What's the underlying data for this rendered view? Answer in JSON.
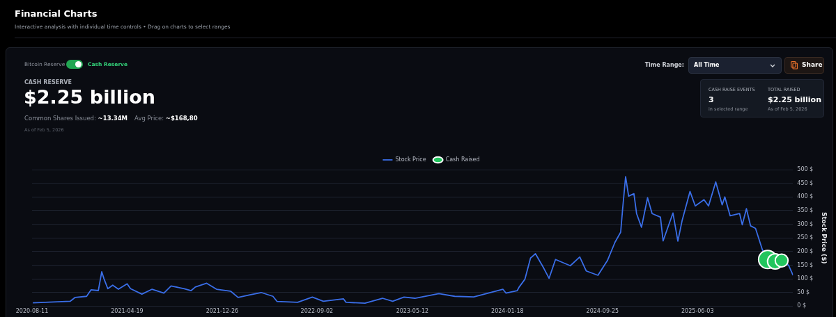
{
  "chart_data": {
    "type": "line",
    "title": "Financial Charts",
    "subtitle": "Interactive analysis with individual time controls • Drag on charts to select ranges",
    "ylabel": "Stock Price ($)",
    "annotations": [
      "Bitcoin Reserve",
      "Cash Reserve",
      "CASH RESERVE",
      "$2.25 billion",
      "Common Shares Issued:",
      "~13.34M",
      "Avg Price:",
      "~$168,80",
      "As of Feb 5, 2026",
      "Time Range:",
      "All Time",
      "Share",
      "CASH RAISE EVENTS",
      "3",
      "in selected range",
      "TOTAL RAISED",
      "$2.25 billion",
      "As of Feb 5, 2026"
    ],
    "series": [
      {
        "name": "Stock Price",
        "color": "#3a6ee8",
        "marker": "none",
        "x": [
          "2020-08-13",
          "2020-11-20",
          "2020-12-03",
          "2021-01-02",
          "2021-01-14",
          "2021-02-02",
          "2021-02-11",
          "2021-02-17",
          "2021-02-27",
          "2021-03-12",
          "2021-03-27",
          "2021-04-19",
          "2021-04-28",
          "2021-05-28",
          "2021-06-24",
          "2021-07-25",
          "2021-08-13",
          "2021-09-17",
          "2021-10-05",
          "2021-10-16",
          "2021-11-15",
          "2021-12-11",
          "2022-01-17",
          "2022-02-06",
          "2022-03-07",
          "2022-04-08",
          "2022-05-09",
          "2022-05-20",
          "2022-07-13",
          "2022-08-21",
          "2022-09-19",
          "2022-11-11",
          "2022-11-18",
          "2023-01-07",
          "2023-02-22",
          "2023-03-21",
          "2023-04-20",
          "2023-05-19",
          "2023-07-21",
          "2023-09-01",
          "2023-10-21",
          "2024-01-06",
          "2024-01-14",
          "2024-02-13",
          "2024-02-18",
          "2024-03-04",
          "2024-03-19",
          "2024-04-01",
          "2024-04-23",
          "2024-05-07",
          "2024-05-24",
          "2024-07-02",
          "2024-07-27",
          "2024-08-13",
          "2024-09-13",
          "2024-10-08",
          "2024-10-28",
          "2024-11-12",
          "2024-11-17",
          "2024-11-25",
          "2024-12-03",
          "2024-12-17",
          "2024-12-24",
          "2025-01-06",
          "2025-01-22",
          "2025-02-03",
          "2025-02-25",
          "2025-03-04",
          "2025-03-30",
          "2025-04-12",
          "2025-04-23",
          "2025-05-14",
          "2025-05-28",
          "2025-06-20",
          "2025-07-02",
          "2025-07-21",
          "2025-08-07",
          "2025-08-14",
          "2025-08-28",
          "2025-09-22",
          "2025-09-29",
          "2025-10-10",
          "2025-10-21",
          "2025-11-03",
          "2025-11-21",
          "2025-12-05",
          "2026-01-16",
          "2026-01-30",
          "2026-02-10"
        ],
        "values": [
          12,
          18,
          32,
          36,
          60,
          57,
          126,
          100,
          64,
          77,
          62,
          82,
          64,
          44,
          62,
          48,
          74,
          64,
          57,
          70,
          84,
          62,
          55,
          32,
          41,
          50,
          36,
          17,
          14,
          33,
          18,
          27,
          14,
          11,
          29,
          18,
          33,
          29,
          46,
          36,
          34,
          62,
          48,
          57,
          70,
          98,
          176,
          192,
          139,
          102,
          171,
          148,
          180,
          129,
          113,
          167,
          234,
          271,
          353,
          474,
          403,
          412,
          339,
          289,
          397,
          339,
          326,
          239,
          341,
          238,
          312,
          420,
          367,
          390,
          367,
          455,
          371,
          400,
          331,
          339,
          298,
          357,
          294,
          285,
          207,
          175,
          167,
          148,
          113
        ]
      },
      {
        "name": "Cash Raised",
        "type": "bubble",
        "color": "#22c55e",
        "marker": "circle",
        "x": [
          "2025-12-05",
          "2025-12-25",
          "2026-01-11"
        ],
        "values": [
          171,
          164,
          167
        ],
        "sizes": [
          1,
          0.72,
          0.5
        ]
      }
    ],
    "xlim": [
      "2020-08-11",
      "2026-02-10"
    ],
    "xticks": [
      "2020-08-11",
      "2021-04-19",
      "2021-12-26",
      "2022-09-02",
      "2023-05-12",
      "2024-01-18",
      "2024-09-25",
      "2025-06-03"
    ],
    "ylim": [
      0,
      500
    ],
    "yticks": [
      {
        "value": 0,
        "label": "0 $"
      },
      {
        "value": 50,
        "label": "50 $"
      },
      {
        "value": 100,
        "label": "100 $"
      },
      {
        "value": 150,
        "label": "150 $"
      },
      {
        "value": 200,
        "label": "200 $"
      },
      {
        "value": 250,
        "label": "250 $"
      },
      {
        "value": 300,
        "label": "300 $"
      },
      {
        "value": 350,
        "label": "350 $"
      },
      {
        "value": 400,
        "label": "400 $"
      },
      {
        "value": 450,
        "label": "450 $"
      },
      {
        "value": 500,
        "label": "500 $"
      }
    ],
    "grid": "y",
    "legend": "top"
  }
}
